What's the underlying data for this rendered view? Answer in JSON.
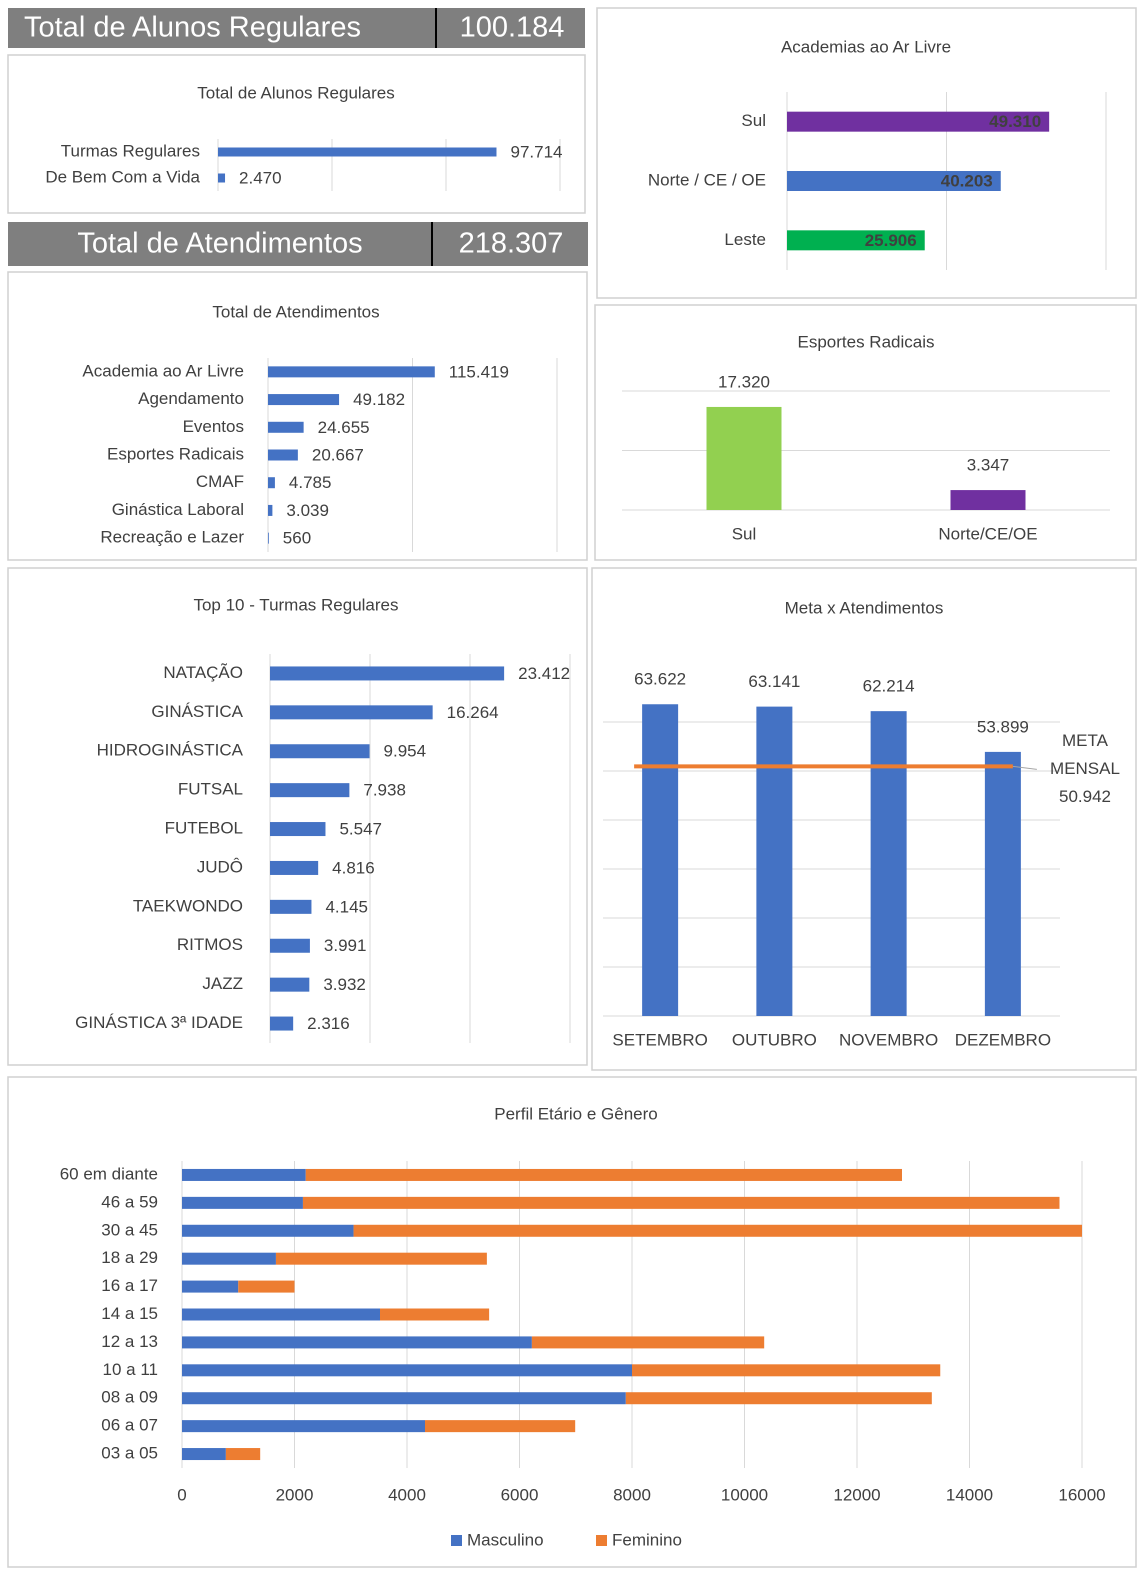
{
  "headers": [
    {
      "label": "Total de Alunos Regulares",
      "value": "100.184"
    },
    {
      "label": "Total de Atendimentos",
      "value": "218.307"
    }
  ],
  "chart_data": [
    {
      "type": "hbar",
      "title": "Total de Alunos Regulares",
      "categories": [
        "Turmas Regulares",
        "De Bem Com a Vida"
      ],
      "values": [
        97714,
        2470
      ],
      "value_labels": [
        "97.714",
        "2.470"
      ],
      "color": "#4472c4",
      "xlim": [
        0,
        120000
      ],
      "xticks": [
        0,
        40000,
        80000,
        120000
      ],
      "tick_labels": false,
      "grid": true
    },
    {
      "type": "hbar",
      "title": "Total de Atendimentos",
      "categories": [
        "Academia ao Ar Livre",
        "Agendamento",
        "Eventos",
        "Esportes Radicais",
        "CMAF",
        "Ginástica Laboral",
        "Recreação e Lazer"
      ],
      "values": [
        115419,
        49182,
        24655,
        20667,
        4785,
        3039,
        560
      ],
      "value_labels": [
        "115.419",
        "49.182",
        "24.655",
        "20.667",
        "4.785",
        "3.039",
        "560"
      ],
      "color": "#4472c4",
      "xlim": [
        0,
        200000
      ],
      "xticks": [
        0,
        100000,
        200000
      ],
      "tick_labels": false,
      "grid": true
    },
    {
      "type": "hbar",
      "title": "Academias ao Ar Livre",
      "categories": [
        "Sul",
        "Norte / CE / OE",
        "Leste"
      ],
      "values": [
        49310,
        40203,
        25906
      ],
      "value_labels": [
        "49.310",
        "40.203",
        "25.906"
      ],
      "colors": [
        "#7030a0",
        "#4472c4",
        "#00b050"
      ],
      "labels_inside": true,
      "xlim": [
        0,
        60000
      ],
      "xticks": [
        0,
        30000,
        60000
      ],
      "tick_labels": false,
      "grid": true
    },
    {
      "type": "vbar",
      "title": "Esportes Radicais",
      "categories": [
        "Sul",
        "Norte/CE/OE"
      ],
      "values": [
        17320,
        3347
      ],
      "value_labels": [
        "17.320",
        "3.347"
      ],
      "colors": [
        "#92d050",
        "#7030a0"
      ],
      "ylim": [
        0,
        20000
      ],
      "yticks": [
        0,
        10000,
        20000
      ],
      "tick_labels": false,
      "grid": true
    },
    {
      "type": "hbar",
      "title": "Top 10 - Turmas Regulares",
      "categories": [
        "NATAÇÃO",
        "GINÁSTICA",
        "HIDROGINÁSTICA",
        "FUTSAL",
        "FUTEBOL",
        "JUDÔ",
        "TAEKWONDO",
        "RITMOS",
        "JAZZ",
        "GINÁSTICA 3ª IDADE"
      ],
      "values": [
        23412,
        16264,
        9954,
        7938,
        5547,
        4816,
        4145,
        3991,
        3932,
        2316
      ],
      "value_labels": [
        "23.412",
        "16.264",
        "9.954",
        "7.938",
        "5.547",
        "4.816",
        "4.145",
        "3.991",
        "3.932",
        "2.316"
      ],
      "color": "#4472c4",
      "xlim": [
        0,
        30000
      ],
      "xticks": [
        0,
        10000,
        20000,
        30000
      ],
      "tick_labels": false,
      "grid": true
    },
    {
      "type": "vbar",
      "title": "Meta x Atendimentos",
      "categories": [
        "SETEMBRO",
        "OUTUBRO",
        "NOVEMBRO",
        "DEZEMBRO"
      ],
      "values": [
        63622,
        63141,
        62214,
        53899
      ],
      "value_labels": [
        "63.622",
        "63.141",
        "62.214",
        "53.899"
      ],
      "color": "#4472c4",
      "target": {
        "label": [
          "META",
          "MENSAL"
        ],
        "value": 50942,
        "value_label": "50.942",
        "color": "#ed7d31"
      },
      "ylim": [
        0,
        70000
      ],
      "yticks": [
        0,
        10000,
        20000,
        30000,
        40000,
        50000,
        60000
      ],
      "tick_labels": false,
      "grid": true
    },
    {
      "type": "stacked_hbar",
      "title": "Perfil Etário e Gênero",
      "categories": [
        "60 em diante",
        "46 a 59",
        "30 a 45",
        "18 a 29",
        "16 a 17",
        "14 a 15",
        "12 a 13",
        "10 a 11",
        "08 a 09",
        "06 a 07",
        "03 a 05"
      ],
      "series": [
        {
          "name": "Masculino",
          "color": "#4472c4",
          "values": [
            2200,
            2150,
            3050,
            1670,
            1000,
            3520,
            6220,
            8000,
            7890,
            4320,
            780
          ]
        },
        {
          "name": "Feminino",
          "color": "#ed7d31",
          "values": [
            10600,
            13450,
            12950,
            3750,
            1000,
            1940,
            4130,
            5480,
            5440,
            2670,
            610
          ]
        }
      ],
      "xlim": [
        0,
        16000
      ],
      "xticks": [
        0,
        2000,
        4000,
        6000,
        8000,
        10000,
        12000,
        14000,
        16000
      ],
      "grid": true,
      "legend": "bottom"
    }
  ]
}
